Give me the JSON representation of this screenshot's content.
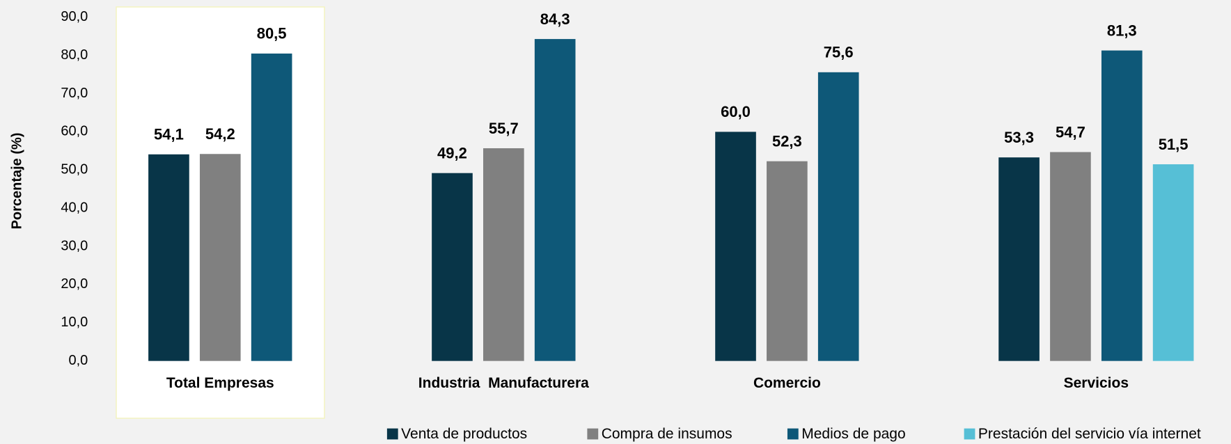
{
  "chart_data": {
    "type": "bar",
    "y_label": "Porcentaje (%)",
    "categories": [
      "Total Empresas",
      "Industria  Manufacturera",
      "Comercio",
      "Servicios"
    ],
    "series": [
      {
        "name": "Venta de productos",
        "color": "#083548",
        "values": [
          54.1,
          49.2,
          60.0,
          53.3
        ],
        "value_labels": [
          "54,1",
          "49,2",
          "60,0",
          "53,3"
        ]
      },
      {
        "name": "Compra de insumos",
        "color": "#808080",
        "values": [
          54.2,
          55.7,
          52.3,
          54.7
        ],
        "value_labels": [
          "54,2",
          "55,7",
          "52,3",
          "54,7"
        ]
      },
      {
        "name": "Medios de pago",
        "color": "#0e5878",
        "values": [
          80.5,
          84.3,
          75.6,
          81.3
        ],
        "value_labels": [
          "80,5",
          "84,3",
          "75,6",
          "81,3"
        ]
      },
      {
        "name": "Prestación del servicio vía internet",
        "color": "#56bfd6",
        "values": [
          null,
          null,
          null,
          51.5
        ],
        "value_labels": [
          null,
          null,
          null,
          "51,5"
        ]
      }
    ],
    "ylim": [
      0,
      90
    ],
    "yticks": [
      {
        "value": 0,
        "label": "0,0"
      },
      {
        "value": 10,
        "label": "10,0"
      },
      {
        "value": 20,
        "label": "20,0"
      },
      {
        "value": 30,
        "label": "30,0"
      },
      {
        "value": 40,
        "label": "40,0"
      },
      {
        "value": 50,
        "label": "50,0"
      },
      {
        "value": 60,
        "label": "60,0"
      },
      {
        "value": 70,
        "label": "70,0"
      },
      {
        "value": 80,
        "label": "80,0"
      },
      {
        "value": 90,
        "label": "90,0"
      }
    ],
    "legend": "bottom"
  }
}
